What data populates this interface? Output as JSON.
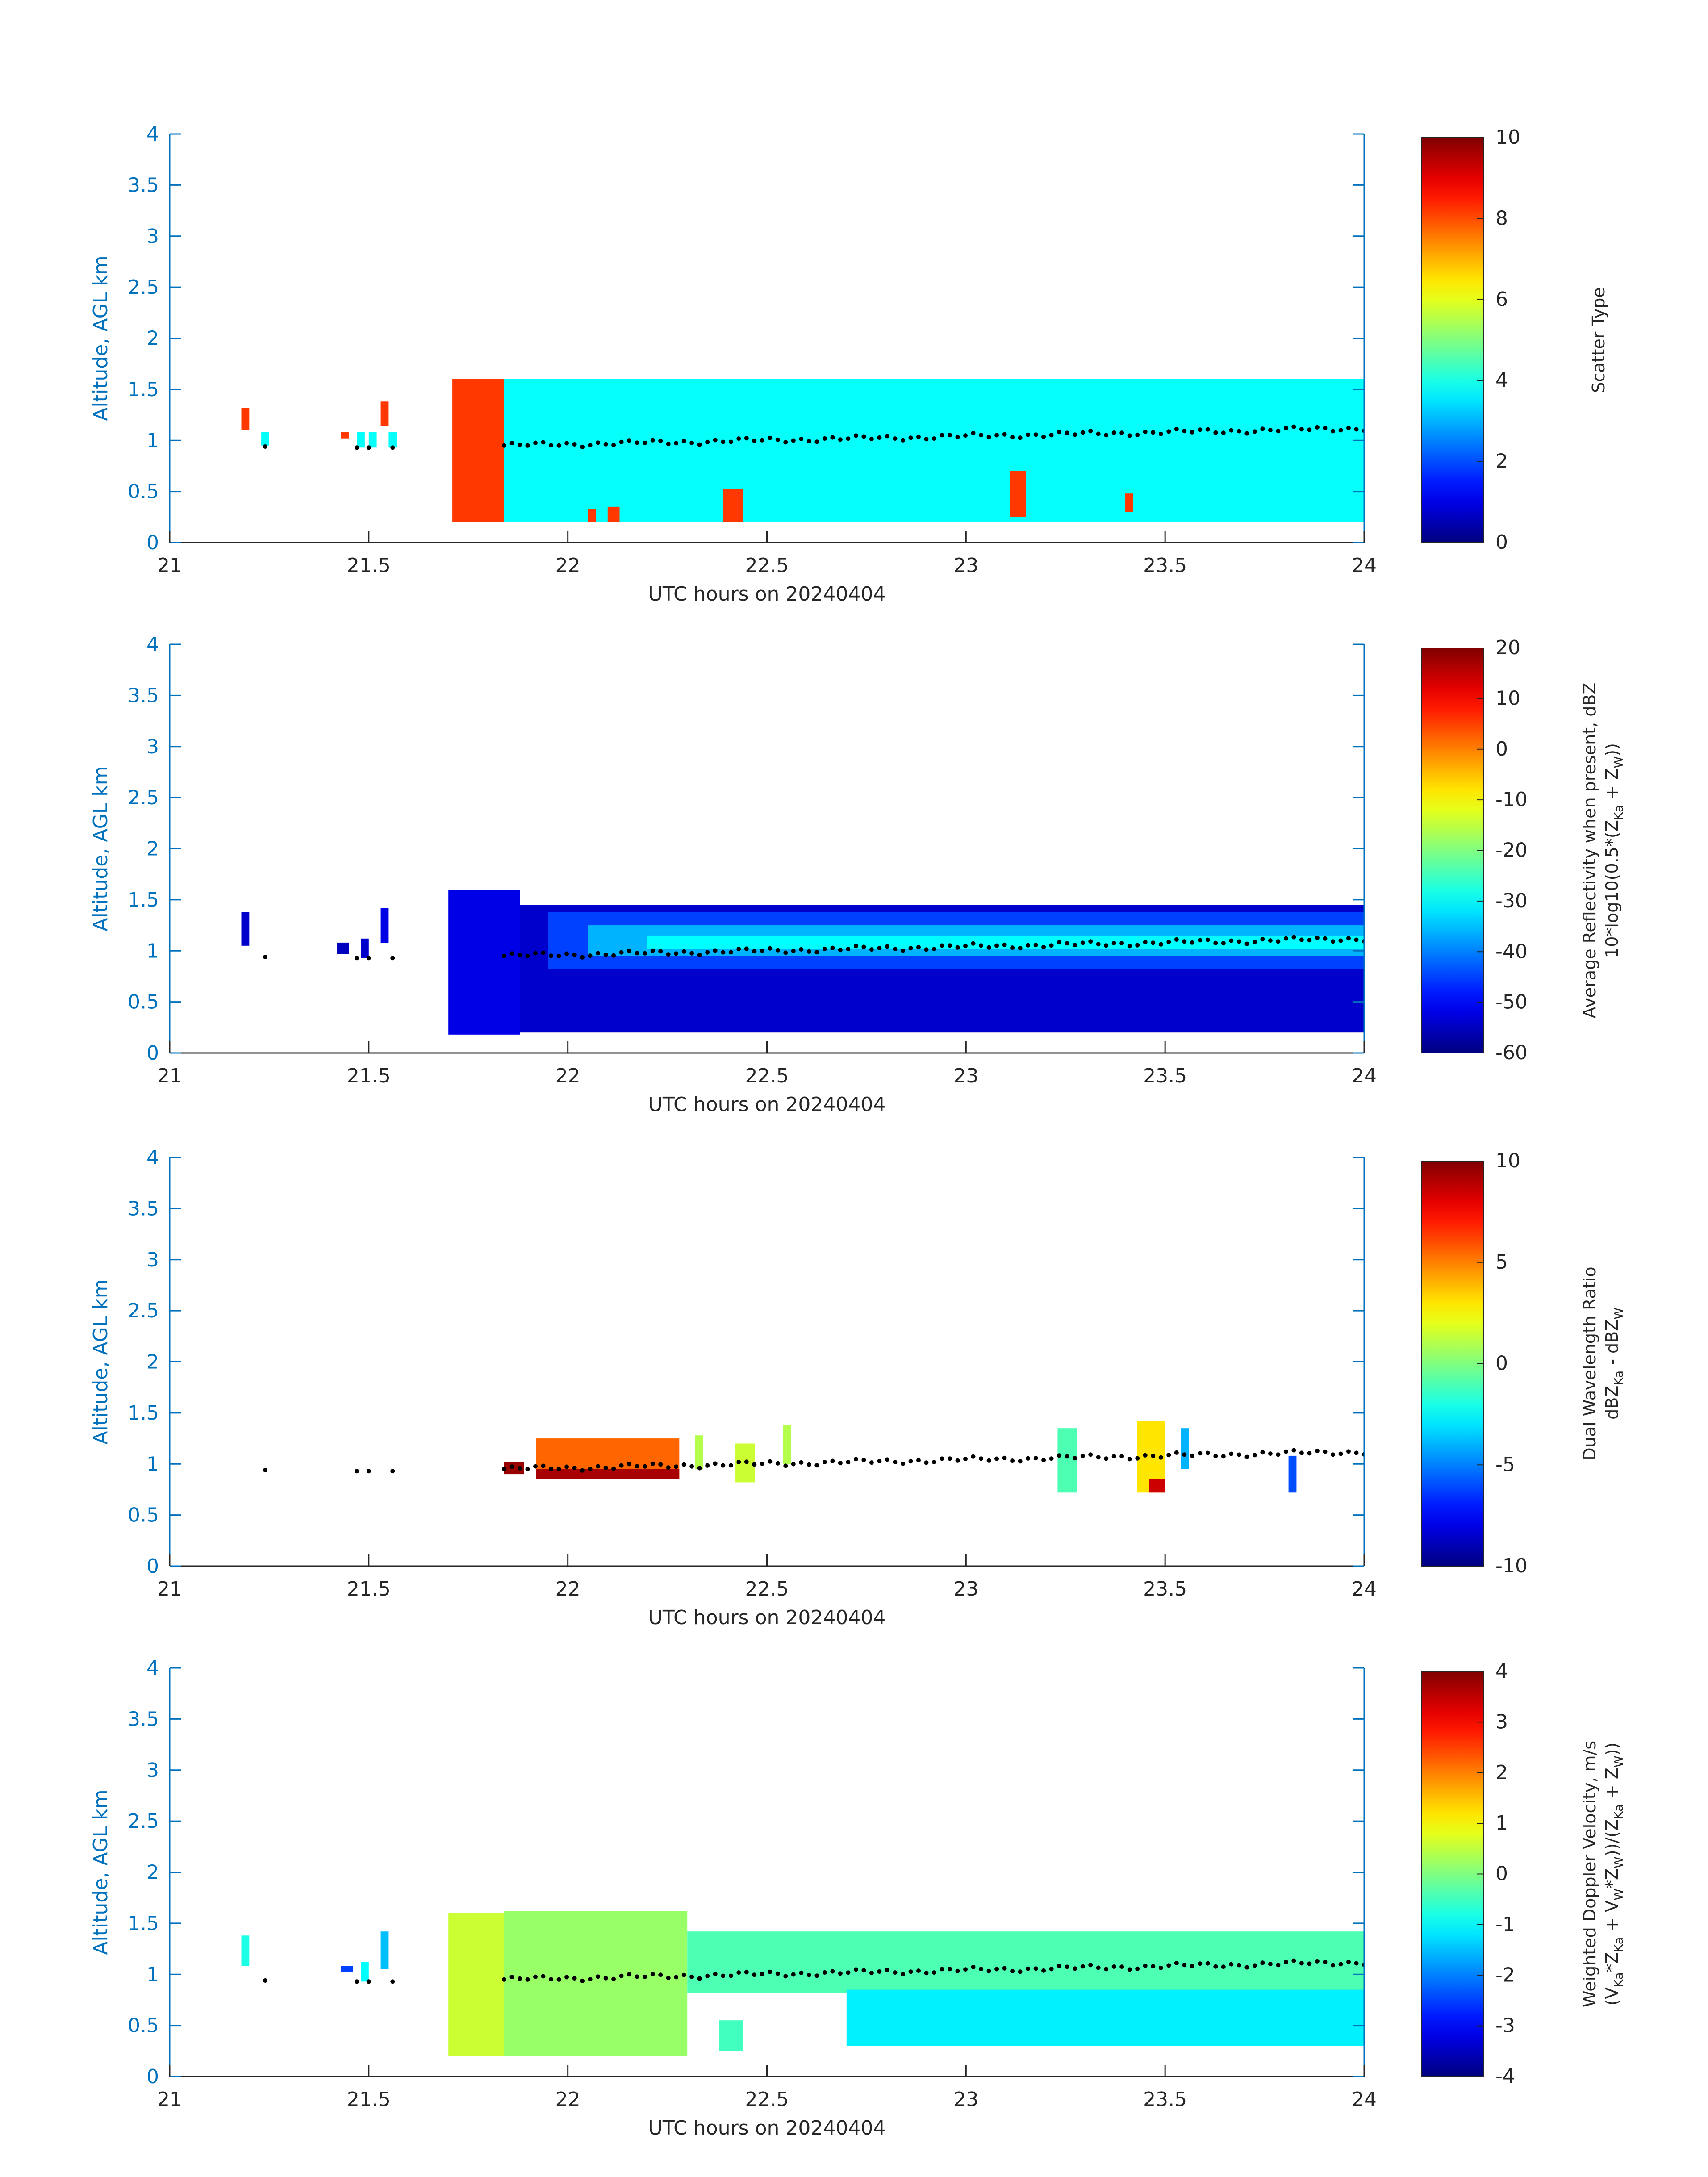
{
  "colors": {
    "axis": "#0072BD",
    "text": "#262626",
    "dots": "#000000"
  },
  "chart_data": [
    {
      "type": "heatmap",
      "ylabel": "Altitude, AGL km",
      "xlabel": "UTC hours on 20240404",
      "xlim": [
        21,
        24
      ],
      "ylim": [
        0,
        4
      ],
      "xticks": [
        "21",
        "21.5",
        "22",
        "22.5",
        "23",
        "23.5",
        "24"
      ],
      "yticks": [
        "0",
        "0.5",
        "1",
        "1.5",
        "2",
        "2.5",
        "3",
        "3.5",
        "4"
      ],
      "colorbar": {
        "label_lines": [
          "Scatter Type"
        ],
        "min": 0,
        "max": 10,
        "ticks": [
          "0",
          "2",
          "4",
          "6",
          "8",
          "10"
        ],
        "colormap": "jet"
      },
      "regions": [
        {
          "x": [
            21.18,
            21.2
          ],
          "y": [
            1.1,
            1.32
          ],
          "value": 8.2
        },
        {
          "x": [
            21.23,
            21.25
          ],
          "y": [
            0.95,
            1.08
          ],
          "value": 3.8
        },
        {
          "x": [
            21.43,
            21.45
          ],
          "y": [
            1.02,
            1.08
          ],
          "value": 8.2
        },
        {
          "x": [
            21.47,
            21.49
          ],
          "y": [
            0.93,
            1.08
          ],
          "value": 3.8
        },
        {
          "x": [
            21.5,
            21.52
          ],
          "y": [
            0.93,
            1.08
          ],
          "value": 3.8
        },
        {
          "x": [
            21.53,
            21.55
          ],
          "y": [
            1.14,
            1.38
          ],
          "value": 8.2
        },
        {
          "x": [
            21.55,
            21.57
          ],
          "y": [
            0.93,
            1.08
          ],
          "value": 3.8
        },
        {
          "x": [
            21.71,
            21.84
          ],
          "y": [
            0.2,
            1.6
          ],
          "value": 8.2
        },
        {
          "x": [
            21.84,
            24
          ],
          "y": [
            0.2,
            1.6
          ],
          "value": 3.8
        },
        {
          "x": [
            22.05,
            22.07
          ],
          "y": [
            0.2,
            0.33
          ],
          "value": 8.2
        },
        {
          "x": [
            22.1,
            22.13
          ],
          "y": [
            0.2,
            0.35
          ],
          "value": 8.2
        },
        {
          "x": [
            22.39,
            22.44
          ],
          "y": [
            0.2,
            0.52
          ],
          "value": 8.2
        },
        {
          "x": [
            23.11,
            23.15
          ],
          "y": [
            0.25,
            0.7
          ],
          "value": 8.2
        },
        {
          "x": [
            23.4,
            23.42
          ],
          "y": [
            0.3,
            0.48
          ],
          "value": 8.2
        }
      ],
      "dots": {
        "x_start": 21.84,
        "x_end": 24,
        "y_start": 0.95,
        "y_end": 1.12,
        "extra_x": [
          21.24,
          21.47,
          21.5,
          21.56
        ],
        "extra_y": [
          0.94,
          0.93,
          0.93,
          0.93
        ]
      }
    },
    {
      "type": "heatmap",
      "ylabel": "Altitude, AGL km",
      "xlabel": "UTC hours on 20240404",
      "xlim": [
        21,
        24
      ],
      "ylim": [
        0,
        4
      ],
      "xticks": [
        "21",
        "21.5",
        "22",
        "22.5",
        "23",
        "23.5",
        "24"
      ],
      "yticks": [
        "0",
        "0.5",
        "1",
        "1.5",
        "2",
        "2.5",
        "3",
        "3.5",
        "4"
      ],
      "colorbar": {
        "label_lines": [
          "Average Reflectivity when present, dBZ",
          "10*log10(0.5*(Z_Ka + Z_W))"
        ],
        "min": -60,
        "max": 20,
        "ticks": [
          "-60",
          "-50",
          "-40",
          "-30",
          "-20",
          "-10",
          "0",
          "10",
          "20"
        ],
        "colormap": "jet"
      },
      "regions": [
        {
          "x": [
            21.18,
            21.2
          ],
          "y": [
            1.05,
            1.38
          ],
          "value": -54
        },
        {
          "x": [
            21.42,
            21.45
          ],
          "y": [
            0.97,
            1.08
          ],
          "value": -55
        },
        {
          "x": [
            21.48,
            21.5
          ],
          "y": [
            0.93,
            1.12
          ],
          "value": -54
        },
        {
          "x": [
            21.53,
            21.55
          ],
          "y": [
            1.08,
            1.42
          ],
          "value": -52
        },
        {
          "x": [
            21.7,
            21.88
          ],
          "y": [
            0.18,
            1.6
          ],
          "value": -52
        },
        {
          "x": [
            21.88,
            24
          ],
          "y": [
            0.2,
            1.45
          ],
          "value": -54
        },
        {
          "x": [
            21.95,
            24
          ],
          "y": [
            0.82,
            1.38
          ],
          "value": -45
        },
        {
          "x": [
            22.05,
            24
          ],
          "y": [
            0.95,
            1.25
          ],
          "value": -36
        },
        {
          "x": [
            22.2,
            24
          ],
          "y": [
            1.02,
            1.15
          ],
          "value": -30
        }
      ],
      "dots": {
        "x_start": 21.84,
        "x_end": 24,
        "y_start": 0.95,
        "y_end": 1.12,
        "extra_x": [
          21.24,
          21.47,
          21.5,
          21.56
        ],
        "extra_y": [
          0.94,
          0.93,
          0.93,
          0.93
        ]
      }
    },
    {
      "type": "heatmap",
      "ylabel": "Altitude, AGL km",
      "xlabel": "UTC hours on 20240404",
      "xlim": [
        21,
        24
      ],
      "ylim": [
        0,
        4
      ],
      "xticks": [
        "21",
        "21.5",
        "22",
        "22.5",
        "23",
        "23.5",
        "24"
      ],
      "yticks": [
        "0",
        "0.5",
        "1",
        "1.5",
        "2",
        "2.5",
        "3",
        "3.5",
        "4"
      ],
      "colorbar": {
        "label_lines": [
          "Dual Wavelength Ratio",
          "dBZ_Ka - dBZ_W"
        ],
        "min": -10,
        "max": 10,
        "ticks": [
          "-10",
          "-5",
          "0",
          "5",
          "10"
        ],
        "colormap": "jet"
      },
      "regions": [
        {
          "x": [
            21.84,
            21.89
          ],
          "y": [
            0.9,
            1.02
          ],
          "value": 9.5
        },
        {
          "x": [
            21.92,
            22.28
          ],
          "y": [
            0.85,
            1.25
          ],
          "value": 5.5
        },
        {
          "x": [
            21.92,
            22.28
          ],
          "y": [
            0.85,
            0.95
          ],
          "value": 9.2
        },
        {
          "x": [
            22.32,
            22.34
          ],
          "y": [
            0.95,
            1.28
          ],
          "value": 1.0
        },
        {
          "x": [
            22.42,
            22.47
          ],
          "y": [
            0.82,
            1.2
          ],
          "value": 1.5
        },
        {
          "x": [
            22.54,
            22.56
          ],
          "y": [
            1.0,
            1.38
          ],
          "value": 1.0
        },
        {
          "x": [
            23.23,
            23.28
          ],
          "y": [
            0.72,
            1.35
          ],
          "value": -1.0
        },
        {
          "x": [
            23.43,
            23.5
          ],
          "y": [
            0.72,
            1.42
          ],
          "value": 3.0
        },
        {
          "x": [
            23.46,
            23.5
          ],
          "y": [
            0.72,
            0.85
          ],
          "value": 8.5
        },
        {
          "x": [
            23.54,
            23.56
          ],
          "y": [
            0.95,
            1.35
          ],
          "value": -4.0
        },
        {
          "x": [
            23.81,
            23.83
          ],
          "y": [
            0.72,
            1.08
          ],
          "value": -6.0
        }
      ],
      "dots": {
        "x_start": 21.84,
        "x_end": 24,
        "y_start": 0.95,
        "y_end": 1.12,
        "extra_x": [
          21.24,
          21.47,
          21.5,
          21.56
        ],
        "extra_y": [
          0.94,
          0.93,
          0.93,
          0.93
        ]
      }
    },
    {
      "type": "heatmap",
      "ylabel": "Altitude, AGL km",
      "xlabel": "UTC hours on 20240404",
      "xlim": [
        21,
        24
      ],
      "ylim": [
        0,
        4
      ],
      "xticks": [
        "21",
        "21.5",
        "22",
        "22.5",
        "23",
        "23.5",
        "24"
      ],
      "yticks": [
        "0",
        "0.5",
        "1",
        "1.5",
        "2",
        "2.5",
        "3",
        "3.5",
        "4"
      ],
      "colorbar": {
        "label_lines": [
          "Weighted Doppler Velocity, m/s",
          "(V_Ka*Z_Ka + V_W*Z_W))/(Z_Ka + Z_W))"
        ],
        "min": -4,
        "max": 4,
        "ticks": [
          "-4",
          "-3",
          "-2",
          "-1",
          "0",
          "1",
          "2",
          "3",
          "4"
        ],
        "colormap": "jet"
      },
      "regions": [
        {
          "x": [
            21.18,
            21.2
          ],
          "y": [
            1.08,
            1.38
          ],
          "value": -0.8
        },
        {
          "x": [
            21.43,
            21.46
          ],
          "y": [
            1.02,
            1.08
          ],
          "value": -2.5
        },
        {
          "x": [
            21.48,
            21.5
          ],
          "y": [
            0.93,
            1.12
          ],
          "value": -1.0
        },
        {
          "x": [
            21.53,
            21.55
          ],
          "y": [
            1.05,
            1.42
          ],
          "value": -1.5
        },
        {
          "x": [
            21.7,
            21.84
          ],
          "y": [
            0.2,
            1.6
          ],
          "value": 0.6
        },
        {
          "x": [
            21.84,
            22.3
          ],
          "y": [
            0.2,
            1.62
          ],
          "value": 0.2
        },
        {
          "x": [
            22.3,
            24
          ],
          "y": [
            0.82,
            1.42
          ],
          "value": -0.4
        },
        {
          "x": [
            22.38,
            22.44
          ],
          "y": [
            0.25,
            0.55
          ],
          "value": -0.5
        },
        {
          "x": [
            22.7,
            24
          ],
          "y": [
            0.3,
            0.85
          ],
          "value": -1.1
        }
      ],
      "dots": {
        "x_start": 21.84,
        "x_end": 24,
        "y_start": 0.95,
        "y_end": 1.12,
        "extra_x": [
          21.24,
          21.47,
          21.5,
          21.56
        ],
        "extra_y": [
          0.94,
          0.93,
          0.93,
          0.93
        ]
      }
    }
  ]
}
